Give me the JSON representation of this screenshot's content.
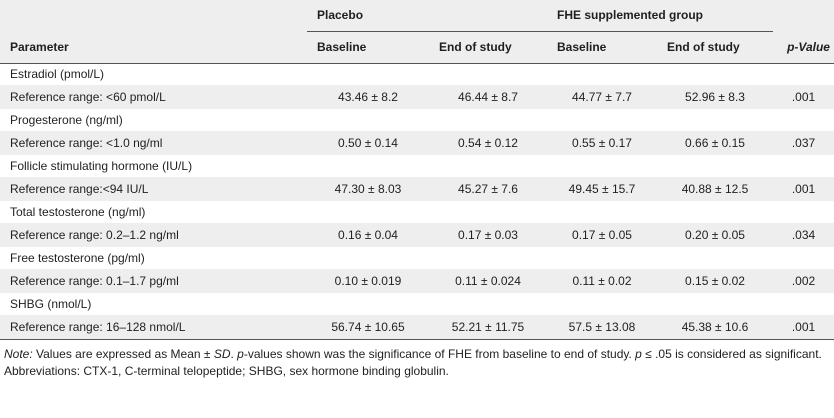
{
  "header": {
    "placebo": "Placebo",
    "fhe_group": "FHE supplemented group",
    "parameter": "Parameter",
    "baseline_1": "Baseline",
    "end_1": "End of study",
    "baseline_2": "Baseline",
    "end_2": "End of study",
    "p_value": "p-Value"
  },
  "rows": [
    {
      "section": "Estradiol (pmol/L)",
      "ref": "Reference range: <60 pmol/L",
      "p_base": "43.46 ± 8.2",
      "p_end": "46.44 ± 8.7",
      "f_base": "44.77 ± 7.7",
      "f_end": "52.96 ± 8.3",
      "p": ".001"
    },
    {
      "section": "Progesterone (ng/ml)",
      "ref": "Reference range: <1.0 ng/ml",
      "p_base": "0.50 ± 0.14",
      "p_end": "0.54 ± 0.12",
      "f_base": "0.55 ± 0.17",
      "f_end": "0.66 ± 0.15",
      "p": ".037"
    },
    {
      "section": "Follicle stimulating hormone (IU/L)",
      "ref": "Reference range:<94 IU/L",
      "p_base": "47.30 ± 8.03",
      "p_end": "45.27 ± 7.6",
      "f_base": "49.45 ± 15.7",
      "f_end": "40.88 ± 12.5",
      "p": ".001"
    },
    {
      "section": "Total testosterone (ng/ml)",
      "ref": "Reference range: 0.2–1.2 ng/ml",
      "p_base": "0.16 ± 0.04",
      "p_end": "0.17 ± 0.03",
      "f_base": "0.17 ± 0.05",
      "f_end": "0.20 ± 0.05",
      "p": ".034"
    },
    {
      "section": "Free testosterone (pg/ml)",
      "ref": "Reference range: 0.1–1.7 pg/ml",
      "p_base": "0.10 ± 0.019",
      "p_end": "0.11 ± 0.024",
      "f_base": "0.11 ± 0.02",
      "f_end": "0.15 ± 0.02",
      "p": ".002"
    },
    {
      "section": "SHBG (nmol/L)",
      "ref": "Reference range: 16–128 nmol/L",
      "p_base": "56.74 ± 10.65",
      "p_end": "52.21 ± 11.75",
      "f_base": "57.5 ± 13.08",
      "f_end": "45.38 ± 10.6",
      "p": ".001"
    }
  ],
  "notes": {
    "note_label": "Note:",
    "note_seg1": " Values are expressed as Mean ± ",
    "note_sd": "SD",
    "note_seg2": ". ",
    "note_p1": "p",
    "note_seg3": "-values shown was the significance of FHE from baseline to end of study. ",
    "note_p2": "p",
    "note_seg4": " ≤ .05 is considered as significant.",
    "abbreviations": "Abbreviations: CTX-1, C-terminal telopeptide; SHBG, sex hormone binding globulin."
  }
}
